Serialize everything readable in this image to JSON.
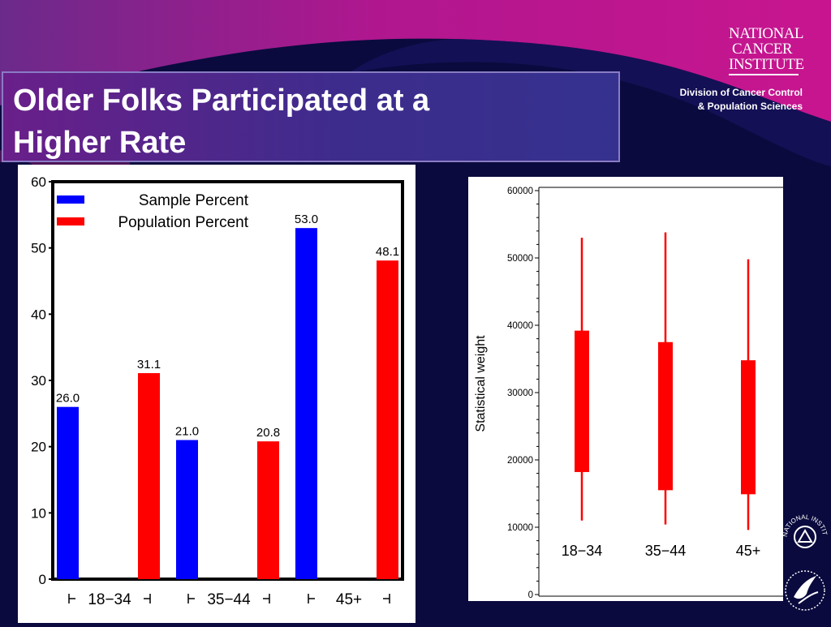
{
  "slide": {
    "title_line1": "Older Folks Participated at a",
    "title_line2": "Higher Rate",
    "logo_line1": "NATIONAL",
    "logo_line2": "CANCER",
    "logo_line3": "INSTITUTE",
    "division_line1": "Division of Cancer Control",
    "division_line2": "& Population Sciences",
    "seal_text": "NATIONAL INSTITUTES OF HEALTH",
    "colors": {
      "background": "#0a0a3e",
      "accent": "#c8158f",
      "title_box": "#3d2c8c"
    }
  },
  "chart_data": [
    {
      "type": "bar",
      "categories": [
        "18−34",
        "35−44",
        "45+"
      ],
      "category_labels": [
        "18−34",
        "35−44",
        "45+"
      ],
      "series": [
        {
          "name": "Sample Percent",
          "values": [
            26.0,
            21.0,
            53.0
          ],
          "labels": [
            "26.0",
            "21.0",
            "53.0"
          ],
          "color": "#0000ff"
        },
        {
          "name": "Population Percent",
          "values": [
            31.1,
            20.8,
            48.1
          ],
          "labels": [
            "31.1",
            "20.8",
            "48.1"
          ],
          "color": "#ff0000"
        }
      ],
      "ylim": [
        0,
        60
      ],
      "yticks": [
        "0",
        "10",
        "20",
        "30",
        "40",
        "50",
        "60"
      ],
      "legend_position": "top-left"
    },
    {
      "type": "box",
      "ylabel": "Statistical weight",
      "categories": [
        "18−34",
        "35−44",
        "45+"
      ],
      "category_labels": [
        "18−34",
        "35−44",
        "45+"
      ],
      "boxes": [
        {
          "min": 11000,
          "q1": 18200,
          "q3": 39200,
          "max": 53000
        },
        {
          "min": 10400,
          "q1": 15500,
          "q3": 37500,
          "max": 53800
        },
        {
          "min": 9600,
          "q1": 14900,
          "q3": 34800,
          "max": 49800
        }
      ],
      "color": "#ff0000",
      "ylim": [
        0,
        60000
      ],
      "yticks": [
        "0",
        "10000",
        "20000",
        "30000",
        "40000",
        "50000",
        "60000"
      ]
    }
  ]
}
